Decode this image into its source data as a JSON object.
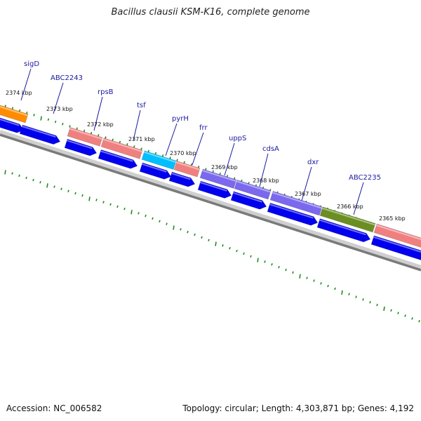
{
  "title": "Bacillus clausii KSM-K16, complete genome",
  "accession_text": "Accession: NC_006582",
  "topology_text": "Topology: circular; Length: 4,303,871 bp; Genes: 4,192",
  "colors": {
    "tick": "#1e8c1e",
    "backbone": "#7a7a7a",
    "cds_reverse": "#0000ee",
    "label": "#1a1aa0"
  },
  "genome_ticks": [
    {
      "label": "2374 kbp"
    },
    {
      "label": "2373 kbp"
    },
    {
      "label": "2372 kbp"
    },
    {
      "label": "2371 kbp"
    },
    {
      "label": "2370 kbp"
    },
    {
      "label": "2369 kbp"
    },
    {
      "label": "2368 kbp"
    },
    {
      "label": "2367 kbp"
    },
    {
      "label": "2366 kbp"
    },
    {
      "label": "2365 kbp"
    }
  ],
  "gene_labels": [
    "sigD",
    "ABC2243",
    "rpsB",
    "tsf",
    "pyrH",
    "frr",
    "uppS",
    "cdsA",
    "dxr",
    "ABC2235"
  ],
  "cog_feature_colors": [
    "#ff8c00",
    "#f08080",
    "#f08080",
    "#00bfff",
    "#f08080",
    "#7b68ee",
    "#7b68ee",
    "#7b68ee",
    "#6b8e23",
    "#f08080"
  ]
}
